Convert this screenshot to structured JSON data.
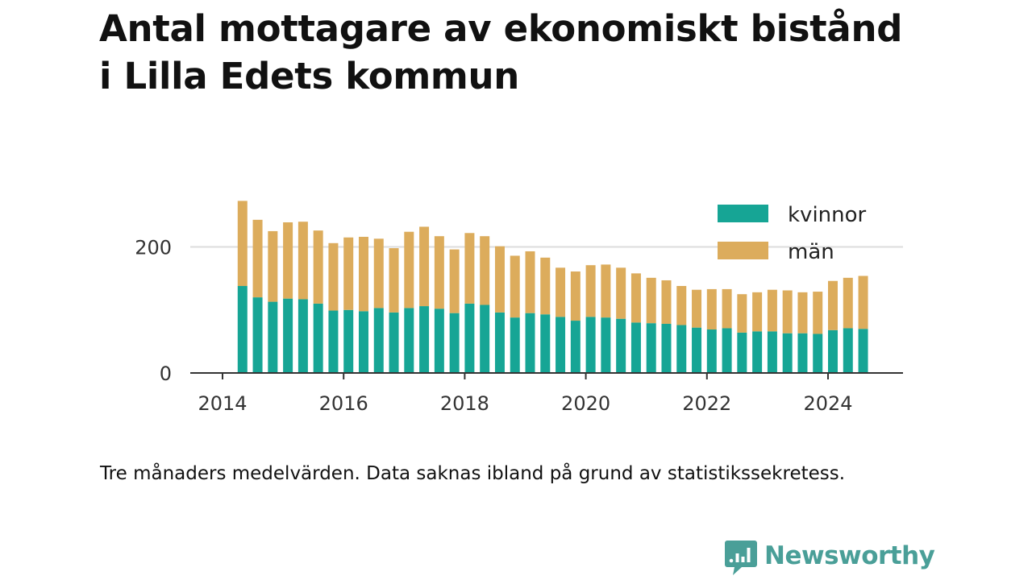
{
  "chart_data": {
    "type": "bar",
    "stacked": true,
    "title": "Antal mottagare av ekonomiskt bistånd i Lilla Edets kommun",
    "note": "Tre månaders medelvärden. Data saknas ibland på grund av statistikssekretess.",
    "x_ticks": [
      "2014",
      "2016",
      "2018",
      "2020",
      "2022",
      "2024"
    ],
    "y_ticks": [
      "0",
      "200"
    ],
    "ylim": [
      0,
      280
    ],
    "xlim": [
      2014.0,
      2025.2
    ],
    "grid": true,
    "legend_position": "top-right",
    "x": [
      2014.33,
      2014.58,
      2014.83,
      2015.08,
      2015.33,
      2015.58,
      2015.83,
      2016.08,
      2016.33,
      2016.58,
      2016.83,
      2017.08,
      2017.33,
      2017.58,
      2017.83,
      2018.08,
      2018.33,
      2018.58,
      2018.83,
      2019.08,
      2019.33,
      2019.58,
      2019.83,
      2020.08,
      2020.33,
      2020.58,
      2020.83,
      2021.08,
      2021.33,
      2021.58,
      2021.83,
      2022.08,
      2022.33,
      2022.58,
      2022.83,
      2023.08,
      2023.33,
      2023.58,
      2023.83,
      2024.08,
      2024.33,
      2024.58
    ],
    "series": [
      {
        "name": "kvinnor",
        "color": "#16a595",
        "values": [
          138,
          120,
          113,
          118,
          117,
          110,
          99,
          100,
          98,
          103,
          96,
          103,
          106,
          102,
          95,
          110,
          108,
          96,
          88,
          95,
          93,
          89,
          83,
          89,
          88,
          86,
          80,
          79,
          78,
          76,
          72,
          69,
          71,
          64,
          66,
          66,
          63,
          63,
          62,
          68,
          71,
          70
        ]
      },
      {
        "name": "män",
        "color": "#dcac5c",
        "values": [
          135,
          123,
          112,
          121,
          123,
          116,
          107,
          115,
          118,
          110,
          102,
          121,
          126,
          115,
          101,
          112,
          109,
          105,
          98,
          98,
          90,
          78,
          78,
          82,
          84,
          81,
          78,
          72,
          69,
          62,
          60,
          64,
          62,
          61,
          62,
          66,
          68,
          65,
          67,
          78,
          80,
          84
        ]
      }
    ]
  },
  "brand": {
    "name": "Newsworthy",
    "color": "#4a9f98"
  }
}
